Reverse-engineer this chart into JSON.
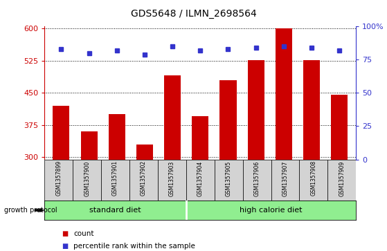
{
  "title": "GDS5648 / ILMN_2698564",
  "samples": [
    "GSM1357899",
    "GSM1357900",
    "GSM1357901",
    "GSM1357902",
    "GSM1357903",
    "GSM1357904",
    "GSM1357905",
    "GSM1357906",
    "GSM1357907",
    "GSM1357908",
    "GSM1357909"
  ],
  "counts": [
    420,
    360,
    400,
    330,
    490,
    395,
    480,
    527,
    600,
    527,
    445
  ],
  "percentiles": [
    83,
    80,
    82,
    79,
    85,
    82,
    83,
    84,
    85,
    84,
    82
  ],
  "group_labels": [
    "standard diet",
    "high calorie diet"
  ],
  "std_diet_count": 5,
  "bar_color": "#CC0000",
  "dot_color": "#3333CC",
  "ylim_left": [
    295,
    605
  ],
  "yticks_left": [
    300,
    375,
    450,
    525,
    600
  ],
  "ylim_right": [
    0,
    100
  ],
  "yticks_right": [
    0,
    25,
    50,
    75,
    100
  ],
  "ylabel_left_color": "#CC0000",
  "ylabel_right_color": "#3333CC",
  "bg_color": "#D3D3D3",
  "green_color": "#90EE90",
  "grid_color": "#000000",
  "legend_count_color": "#CC0000",
  "legend_pct_color": "#3333CC",
  "bar_bottom": 295
}
